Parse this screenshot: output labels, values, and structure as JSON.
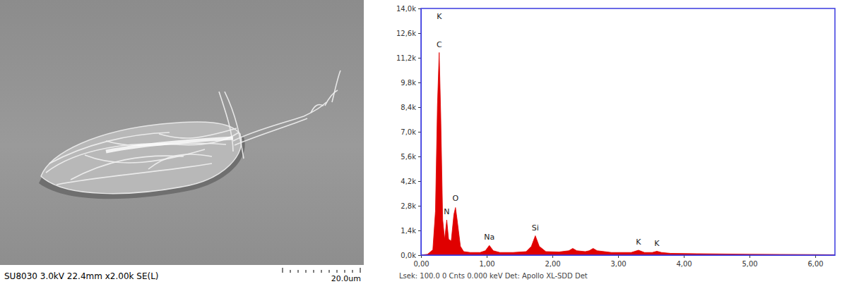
{
  "micrograph": {
    "caption": "SU8030 3.0kV 22.4mm x2.00k SE(L)",
    "scale_bar": "20.0um"
  },
  "chart_data": {
    "type": "area",
    "color": "#e00000",
    "grid": false,
    "caption": "Lsek: 100.0 0 Cnts 0.000 keV Det: Apollo XL-SDD Det",
    "x": [
      0.0,
      0.1,
      0.18,
      0.22,
      0.25,
      0.277,
      0.3,
      0.33,
      0.36,
      0.392,
      0.42,
      0.46,
      0.5,
      0.525,
      0.55,
      0.6,
      0.65,
      0.75,
      0.9,
      0.98,
      1.04,
      1.1,
      1.2,
      1.4,
      1.6,
      1.68,
      1.74,
      1.8,
      1.9,
      2.1,
      2.25,
      2.31,
      2.37,
      2.5,
      2.56,
      2.62,
      2.68,
      2.9,
      3.2,
      3.31,
      3.4,
      3.52,
      3.59,
      3.66,
      3.8,
      4.2,
      5.0,
      6.0,
      6.3
    ],
    "values": [
      0,
      50,
      300,
      2500,
      8500,
      11500,
      8000,
      2000,
      900,
      2000,
      900,
      800,
      2300,
      2700,
      2000,
      500,
      200,
      150,
      150,
      250,
      550,
      250,
      150,
      150,
      200,
      500,
      1100,
      500,
      200,
      180,
      250,
      380,
      250,
      200,
      250,
      380,
      250,
      150,
      150,
      280,
      150,
      150,
      220,
      150,
      100,
      80,
      50,
      30,
      20
    ],
    "xlim": [
      0,
      6.3
    ],
    "xticks": [
      {
        "value": 0,
        "label": "0,00"
      },
      {
        "value": 1,
        "label": "1,00"
      },
      {
        "value": 2,
        "label": "2,00"
      },
      {
        "value": 3,
        "label": "3,00"
      },
      {
        "value": 4,
        "label": "4,00"
      },
      {
        "value": 5,
        "label": "5,00"
      },
      {
        "value": 6,
        "label": "6,00"
      }
    ],
    "ylim": [
      0,
      14000
    ],
    "yticks": [
      {
        "value": 0,
        "label": "0,0k"
      },
      {
        "value": 1400,
        "label": "1,4k"
      },
      {
        "value": 2800,
        "label": "2,8k"
      },
      {
        "value": 4200,
        "label": "4,2k"
      },
      {
        "value": 5600,
        "label": "5,6k"
      },
      {
        "value": 7000,
        "label": "7,0k"
      },
      {
        "value": 8400,
        "label": "8,4k"
      },
      {
        "value": 9800,
        "label": "9,8k"
      },
      {
        "value": 11200,
        "label": "11,2k"
      },
      {
        "value": 12600,
        "label": "12,6k"
      },
      {
        "value": 14000,
        "label": "14,0k"
      }
    ],
    "annotations": [
      {
        "text": "K",
        "x": 0.277,
        "y": 13300
      },
      {
        "text": "C",
        "x": 0.277,
        "y": 11700
      },
      {
        "text": "N",
        "x": 0.392,
        "y": 2200
      },
      {
        "text": "O",
        "x": 0.525,
        "y": 2950
      },
      {
        "text": "Na",
        "x": 1.04,
        "y": 750
      },
      {
        "text": "Si",
        "x": 1.74,
        "y": 1300
      },
      {
        "text": "K",
        "x": 3.31,
        "y": 480
      },
      {
        "text": "K",
        "x": 3.59,
        "y": 420
      }
    ]
  }
}
